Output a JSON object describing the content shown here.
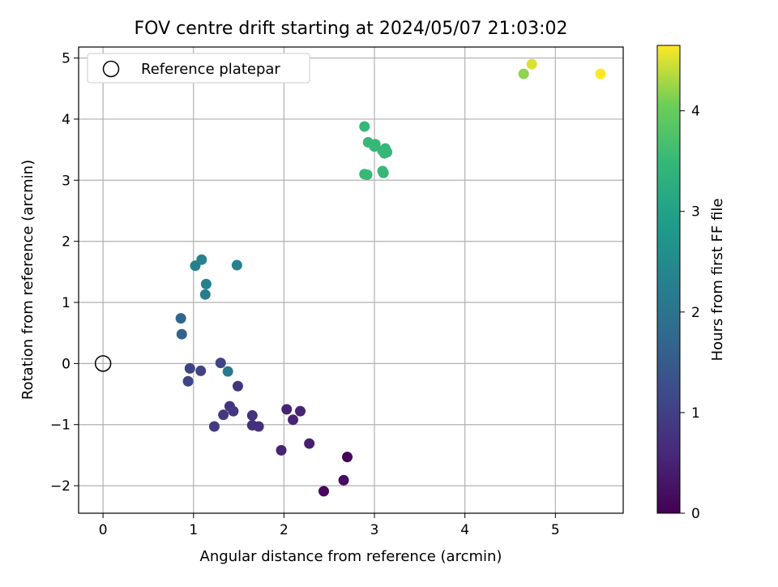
{
  "chart_data": {
    "type": "scatter",
    "title": "FOV centre drift starting at 2024/05/07 21:03:02",
    "xlabel": "Angular distance from reference (arcmin)",
    "ylabel": "Rotation from reference (arcmin)",
    "xlim": [
      -0.27,
      5.75
    ],
    "ylim": [
      -2.45,
      5.18
    ],
    "xticks": [
      0,
      1,
      2,
      3,
      4,
      5
    ],
    "xtick_labels": [
      "0",
      "1",
      "2",
      "3",
      "4",
      "5"
    ],
    "yticks": [
      -2,
      -1,
      0,
      1,
      2,
      3,
      4,
      5
    ],
    "ytick_labels": [
      "−2",
      "−1",
      "0",
      "1",
      "2",
      "3",
      "4",
      "5"
    ],
    "grid": true,
    "legend": {
      "placement": "upper-left",
      "entries": [
        "Reference platepar"
      ]
    },
    "reference_point": {
      "x": 0,
      "y": 0
    },
    "colorbar": {
      "label": "Hours from first FF file",
      "range": [
        0,
        4.65
      ],
      "ticks": [
        0,
        1,
        2,
        3,
        4
      ],
      "tick_labels": [
        "0",
        "1",
        "2",
        "3",
        "4"
      ],
      "colormap": "viridis"
    },
    "points": [
      {
        "x": 2.7,
        "y": -1.53,
        "c": 0.05
      },
      {
        "x": 2.44,
        "y": -2.09,
        "c": 0.1
      },
      {
        "x": 2.66,
        "y": -1.91,
        "c": 0.2
      },
      {
        "x": 2.28,
        "y": -1.31,
        "c": 0.45
      },
      {
        "x": 1.97,
        "y": -1.42,
        "c": 0.5
      },
      {
        "x": 2.03,
        "y": -0.75,
        "c": 0.5
      },
      {
        "x": 2.1,
        "y": -0.92,
        "c": 0.52
      },
      {
        "x": 2.18,
        "y": -0.78,
        "c": 0.52
      },
      {
        "x": 1.65,
        "y": -1.01,
        "c": 0.72
      },
      {
        "x": 1.72,
        "y": -1.03,
        "c": 0.72
      },
      {
        "x": 1.65,
        "y": -0.85,
        "c": 0.75
      },
      {
        "x": 1.49,
        "y": -0.37,
        "c": 0.8
      },
      {
        "x": 1.4,
        "y": -0.7,
        "c": 0.8
      },
      {
        "x": 1.44,
        "y": -0.78,
        "c": 0.82
      },
      {
        "x": 1.33,
        "y": -0.84,
        "c": 0.88
      },
      {
        "x": 1.23,
        "y": -1.03,
        "c": 0.92
      },
      {
        "x": 0.96,
        "y": -0.08,
        "c": 1.05
      },
      {
        "x": 1.08,
        "y": -0.12,
        "c": 1.05
      },
      {
        "x": 0.94,
        "y": -0.29,
        "c": 1.08
      },
      {
        "x": 1.3,
        "y": 0.01,
        "c": 1.1
      },
      {
        "x": 0.87,
        "y": 0.48,
        "c": 1.65
      },
      {
        "x": 0.86,
        "y": 0.74,
        "c": 1.68
      },
      {
        "x": 1.38,
        "y": -0.13,
        "c": 2.1
      },
      {
        "x": 1.13,
        "y": 1.13,
        "c": 2.2
      },
      {
        "x": 1.14,
        "y": 1.3,
        "c": 2.3
      },
      {
        "x": 1.02,
        "y": 1.6,
        "c": 2.3
      },
      {
        "x": 1.09,
        "y": 1.7,
        "c": 2.35
      },
      {
        "x": 1.48,
        "y": 1.61,
        "c": 2.3
      },
      {
        "x": 2.89,
        "y": 3.88,
        "c": 3.5
      },
      {
        "x": 2.93,
        "y": 3.62,
        "c": 3.5
      },
      {
        "x": 3.01,
        "y": 3.59,
        "c": 3.5
      },
      {
        "x": 3.0,
        "y": 3.55,
        "c": 3.5
      },
      {
        "x": 3.12,
        "y": 3.52,
        "c": 3.5
      },
      {
        "x": 3.09,
        "y": 3.48,
        "c": 3.5
      },
      {
        "x": 3.14,
        "y": 3.46,
        "c": 3.5
      },
      {
        "x": 3.11,
        "y": 3.44,
        "c": 3.5
      },
      {
        "x": 3.09,
        "y": 3.15,
        "c": 3.5
      },
      {
        "x": 3.1,
        "y": 3.12,
        "c": 3.5
      },
      {
        "x": 2.89,
        "y": 3.1,
        "c": 3.52
      },
      {
        "x": 2.92,
        "y": 3.09,
        "c": 3.52
      },
      {
        "x": 4.65,
        "y": 4.74,
        "c": 4.2
      },
      {
        "x": 4.74,
        "y": 4.9,
        "c": 4.5
      },
      {
        "x": 5.5,
        "y": 4.74,
        "c": 4.65
      }
    ]
  }
}
